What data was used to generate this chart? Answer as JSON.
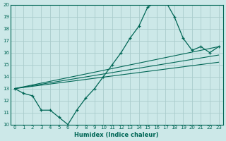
{
  "xlabel": "Humidex (Indice chaleur)",
  "bg_color": "#cce8e8",
  "grid_color": "#aacccc",
  "line_color": "#006655",
  "xlim": [
    -0.5,
    23.5
  ],
  "ylim": [
    10,
    20
  ],
  "yticks": [
    10,
    11,
    12,
    13,
    14,
    15,
    16,
    17,
    18,
    19,
    20
  ],
  "xticks": [
    0,
    1,
    2,
    3,
    4,
    5,
    6,
    7,
    8,
    9,
    10,
    11,
    12,
    13,
    14,
    15,
    16,
    17,
    18,
    19,
    20,
    21,
    22,
    23
  ],
  "curve1_x": [
    0,
    1,
    2,
    3,
    4,
    5,
    6,
    7,
    8,
    9,
    10,
    11,
    12,
    13,
    14,
    15,
    16,
    17,
    18,
    19,
    20,
    21,
    22,
    23
  ],
  "curve1_y": [
    13.0,
    12.6,
    12.4,
    11.2,
    11.2,
    10.6,
    10.0,
    11.2,
    12.2,
    13.0,
    14.0,
    15.0,
    16.0,
    17.2,
    18.2,
    19.8,
    20.2,
    20.3,
    19.0,
    17.2,
    16.2,
    16.5,
    16.0,
    16.5
  ],
  "line1_x": [
    0,
    23
  ],
  "line1_y": [
    13.0,
    16.5
  ],
  "line2_x": [
    0,
    23
  ],
  "line2_y": [
    13.0,
    15.8
  ],
  "line3_x": [
    0,
    23
  ],
  "line3_y": [
    13.0,
    15.2
  ]
}
